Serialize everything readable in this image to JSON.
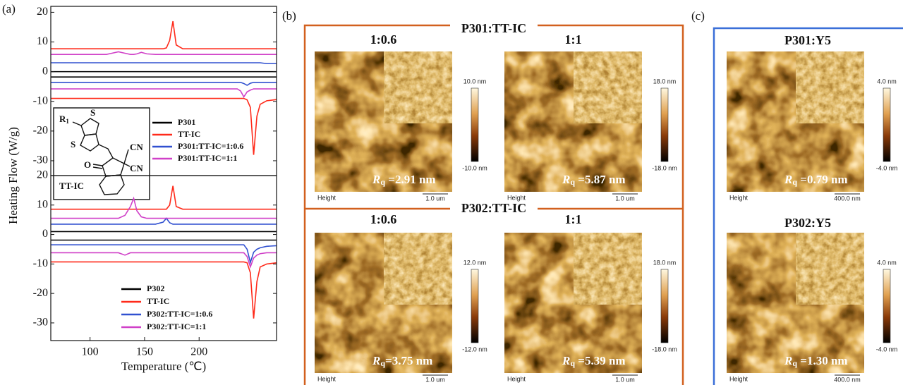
{
  "chart_data": [
    {
      "type": "line",
      "panel_label": "(a)",
      "ylabel": "Heating Flow (W/g)",
      "x": [
        64,
        100,
        115,
        120,
        126,
        132,
        137,
        140,
        143,
        147,
        152,
        160,
        167,
        170,
        173,
        176,
        179,
        185,
        200,
        220,
        235,
        238,
        241,
        244,
        247,
        250,
        253,
        256,
        262,
        271
      ],
      "xlim": [
        64,
        271
      ],
      "ylim": [
        -35,
        22
      ],
      "yticks": [
        -30,
        -20,
        -10,
        0,
        10,
        20
      ],
      "legend": "middle-left",
      "series": [
        {
          "name": "P301",
          "color": "#000000",
          "values": [
            0,
            0,
            0,
            0,
            0,
            0,
            0,
            0,
            0,
            0,
            0,
            0,
            0,
            0,
            0,
            0,
            0,
            0,
            0,
            0,
            0,
            0,
            0,
            0,
            0,
            0,
            0,
            0,
            0,
            0
          ],
          "values_cooling": [
            -1.8,
            -1.8,
            -1.8,
            -1.8,
            -1.8,
            -1.8,
            -1.8,
            -1.8,
            -1.8,
            -1.8,
            -1.8,
            -1.8,
            -1.8,
            -1.8,
            -1.8,
            -1.8,
            -1.8,
            -1.8,
            -1.8,
            -1.8,
            -1.8,
            -1.8,
            -1.8,
            -1.8,
            -1.8,
            -1.8,
            -1.8,
            -1.8,
            -1.8,
            -1.8
          ]
        },
        {
          "name": "TT-IC",
          "color": "#ff2a1a",
          "values": [
            7.7,
            7.7,
            7.7,
            7.7,
            7.7,
            7.7,
            7.7,
            7.7,
            7.7,
            7.7,
            7.7,
            7.7,
            7.7,
            8,
            10.5,
            17,
            9,
            7.7,
            7.7,
            7.7,
            7.7,
            7.7,
            7.7,
            7.7,
            7.7,
            7.7,
            7.7,
            7.7,
            7.7,
            7.7
          ],
          "values_cooling": [
            -9,
            -9,
            -9,
            -9,
            -9,
            -9,
            -9,
            -9,
            -9,
            -9,
            -9,
            -9,
            -9,
            -9,
            -9,
            -9,
            -9,
            -9,
            -9,
            -9,
            -9,
            -9,
            -9,
            -9.5,
            -12,
            -28,
            -15,
            -11,
            -9.8,
            -9.4
          ]
        },
        {
          "name": "P301:TT-IC=1:0.6",
          "color": "#3050d0",
          "values": [
            3,
            3,
            3,
            3,
            3,
            3,
            3,
            3,
            3,
            3,
            3,
            3,
            3,
            3,
            3,
            3,
            3,
            3,
            3,
            3,
            3,
            3,
            3,
            3,
            3,
            3,
            3,
            3,
            2.7,
            2.7
          ],
          "values_cooling": [
            -3.6,
            -3.6,
            -3.6,
            -3.6,
            -3.6,
            -3.6,
            -3.6,
            -3.6,
            -3.6,
            -3.6,
            -3.6,
            -3.6,
            -3.6,
            -3.6,
            -3.6,
            -3.6,
            -3.6,
            -3.6,
            -3.6,
            -3.6,
            -3.6,
            -3.6,
            -4,
            -4.6,
            -3.9,
            -3.6,
            -3.6,
            -3.6,
            -3.6,
            -3.6
          ]
        },
        {
          "name": "P301:TT-IC=1:1",
          "color": "#d040c8",
          "values": [
            5.8,
            5.8,
            5.8,
            6.2,
            6.7,
            6.2,
            5.8,
            5.8,
            6,
            6.5,
            6,
            5.8,
            5.8,
            5.8,
            5.8,
            5.8,
            5.8,
            5.8,
            5.8,
            5.8,
            5.8,
            5.8,
            5.8,
            5.8,
            5.8,
            5.8,
            5.8,
            5.8,
            5.8,
            5.8
          ],
          "values_cooling": [
            -5.8,
            -5.8,
            -5.8,
            -5.8,
            -5.8,
            -5.8,
            -5.8,
            -5.8,
            -5.8,
            -5.8,
            -5.8,
            -5.8,
            -5.8,
            -5.8,
            -5.8,
            -5.8,
            -5.8,
            -5.8,
            -5.8,
            -5.8,
            -5.8,
            -6.5,
            -8.5,
            -6.8,
            -6.2,
            -5.8,
            -5.8,
            -5.8,
            -5.8,
            -5.8
          ]
        }
      ]
    },
    {
      "type": "line",
      "xlabel": "Temperature (℃)",
      "x": [
        64,
        100,
        115,
        120,
        126,
        132,
        137,
        140,
        143,
        147,
        152,
        160,
        167,
        170,
        173,
        176,
        179,
        185,
        200,
        220,
        235,
        238,
        241,
        244,
        247,
        250,
        253,
        256,
        262,
        271
      ],
      "xlim": [
        64,
        271
      ],
      "xticks": [
        100,
        150,
        200
      ],
      "ylim": [
        -36,
        20
      ],
      "yticks": [
        -30,
        -20,
        -10,
        0,
        10,
        20
      ],
      "legend": "bottom-left",
      "series": [
        {
          "name": "P302",
          "color": "#000000",
          "values": [
            1,
            1,
            1,
            1,
            1,
            1,
            1,
            1,
            1,
            1,
            1,
            1,
            1,
            1,
            1,
            1,
            1,
            1,
            1,
            1,
            1,
            1,
            1,
            1,
            1,
            1,
            1,
            1,
            1,
            1
          ],
          "values_cooling": [
            -1.9,
            -1.9,
            -1.9,
            -1.9,
            -1.9,
            -1.9,
            -1.9,
            -1.9,
            -1.9,
            -1.9,
            -1.9,
            -1.9,
            -1.9,
            -1.9,
            -1.9,
            -1.9,
            -1.9,
            -1.9,
            -1.9,
            -1.9,
            -1.9,
            -1.9,
            -1.9,
            -1.9,
            -1.9,
            -1.9,
            -1.9,
            -1.9,
            -1.9,
            -1.9
          ]
        },
        {
          "name": "TT-IC",
          "color": "#ff2a1a",
          "values": [
            8.6,
            8.6,
            8.6,
            8.6,
            8.6,
            8.6,
            8.6,
            8.6,
            8.6,
            8.6,
            8.6,
            8.6,
            8.6,
            8.6,
            10,
            16.5,
            9.5,
            8.6,
            8.6,
            8.6,
            8.6,
            8.6,
            8.6,
            8.6,
            8.6,
            8.6,
            8.6,
            8.6,
            8.6,
            8.6
          ],
          "values_cooling": [
            -9.3,
            -9.3,
            -9.3,
            -9.3,
            -9.3,
            -9.3,
            -9.3,
            -9.3,
            -9.3,
            -9.3,
            -9.3,
            -9.3,
            -9.3,
            -9.3,
            -9.3,
            -9.3,
            -9.3,
            -9.3,
            -9.3,
            -9.3,
            -9.3,
            -9.3,
            -9.3,
            -9.6,
            -13,
            -28.5,
            -16,
            -11,
            -10,
            -9.6
          ]
        },
        {
          "name": "P302:TT-IC=1:0.6",
          "color": "#3050d0",
          "values": [
            3.5,
            3.5,
            3.5,
            3.5,
            3.5,
            3.5,
            3.5,
            3.5,
            3.5,
            3.5,
            3.5,
            3.5,
            4.2,
            5.5,
            4,
            3.5,
            3.5,
            3.5,
            3.5,
            3.5,
            3.5,
            3.5,
            3.5,
            3.5,
            3.5,
            3.5,
            3.5,
            3.5,
            3.5,
            3.5
          ],
          "values_cooling": [
            -3.5,
            -3.5,
            -3.5,
            -3.5,
            -3.5,
            -3.5,
            -3.5,
            -3.5,
            -3.5,
            -3.5,
            -3.5,
            -3.5,
            -3.5,
            -3.5,
            -3.5,
            -3.5,
            -3.5,
            -3.5,
            -3.5,
            -3.5,
            -3.5,
            -3.5,
            -3.5,
            -5,
            -9.5,
            -6,
            -5,
            -4.5,
            -4,
            -3.8
          ]
        },
        {
          "name": "P302:TT-IC=1:1",
          "color": "#d040c8",
          "values": [
            5.5,
            5.5,
            5.5,
            5.5,
            5.5,
            6.5,
            9.5,
            12.3,
            8,
            6,
            5.5,
            5.5,
            5.5,
            5.5,
            5.5,
            5.5,
            5.5,
            5.5,
            5.5,
            5.5,
            5.5,
            5.5,
            5.5,
            5.5,
            5.5,
            5.5,
            5.5,
            5.5,
            5.5,
            5.5
          ],
          "values_cooling": [
            -6.2,
            -6.2,
            -6.2,
            -6.2,
            -6.2,
            -7,
            -6.2,
            -6.2,
            -6.2,
            -6.2,
            -6.2,
            -6.2,
            -6.2,
            -6.2,
            -6.2,
            -6.2,
            -6.2,
            -6.2,
            -6.2,
            -6.2,
            -6.2,
            -6.2,
            -6.2,
            -7.5,
            -11,
            -8,
            -7,
            -6.5,
            -6.2,
            -6.2
          ]
        }
      ]
    }
  ],
  "inset_structure": {
    "r": "R",
    "r_sub": "1",
    "s": [
      "S",
      "S"
    ],
    "cn": [
      "CN",
      "CN"
    ],
    "o": "O",
    "name": "TT-IC"
  },
  "afm_panels": [
    {
      "label": "(b)",
      "frame_color": "#d2601e",
      "groups": [
        {
          "title": "P301:TT-IC",
          "images": [
            {
              "ratio": "1:0.6",
              "scale_max": "10.0 nm",
              "scale_min": "-10.0 nm",
              "rq": {
                "symbol": "R",
                "sub": "q",
                "text": " =2.91 nm"
              },
              "channel": "Height",
              "scale_bar": "1.0 um"
            },
            {
              "ratio": "1:1",
              "scale_max": "18.0 nm",
              "scale_min": "-18.0 nm",
              "rq": {
                "symbol": "R",
                "sub": "q",
                "text": " =5.87 nm"
              },
              "channel": "Height",
              "scale_bar": "1.0 um"
            }
          ]
        },
        {
          "title": "P302:TT-IC",
          "images": [
            {
              "ratio": "1:0.6",
              "scale_max": "12.0 nm",
              "scale_min": "-12.0 nm",
              "rq": {
                "symbol": "R",
                "sub": "q",
                "text": "=3.75 nm"
              },
              "channel": "Height",
              "scale_bar": "1.0 um"
            },
            {
              "ratio": "1:1",
              "scale_max": "18.0 nm",
              "scale_min": "-18.0 nm",
              "rq": {
                "symbol": "R",
                "sub": "q",
                "text": " =5.39 nm"
              },
              "channel": "Height",
              "scale_bar": "1.0 um"
            }
          ]
        }
      ]
    },
    {
      "label": "(c)",
      "frame_color": "#3a6fd8",
      "groups": [
        {
          "title": "P301:Y5",
          "images": [
            {
              "scale_max": "4.0 nm",
              "scale_min": "-4.0 nm",
              "rq": {
                "symbol": "R",
                "sub": "q",
                "text": " =0.79 nm"
              },
              "channel": "Height",
              "scale_bar": "400.0 nm"
            }
          ]
        },
        {
          "title": "P302:Y5",
          "images": [
            {
              "scale_max": "4.0 nm",
              "scale_min": "-4.0 nm",
              "rq": {
                "symbol": "R",
                "sub": "q",
                "text": " =1.30 nm"
              },
              "channel": "Height",
              "scale_bar": "400.0 nm"
            }
          ]
        }
      ]
    }
  ]
}
